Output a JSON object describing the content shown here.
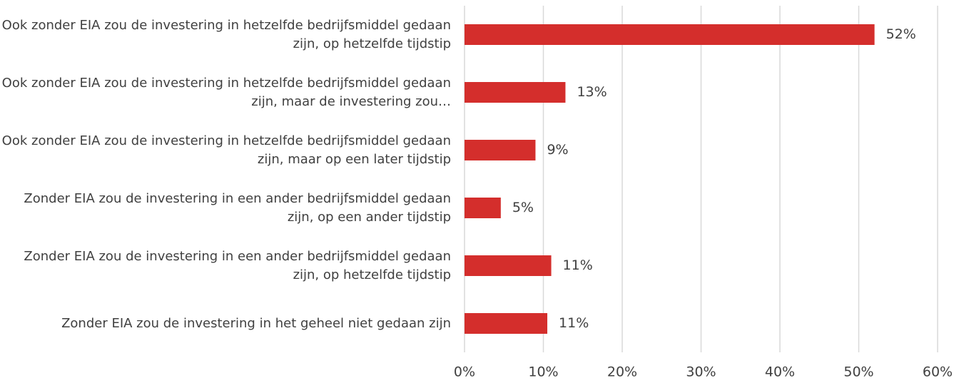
{
  "chart_data": {
    "type": "barh",
    "categories": [
      "Ook zonder EIA zou de investering in hetzelfde bedrijfsmiddel gedaan zijn, op hetzelfde tijdstip",
      "Ook zonder EIA zou de investering in hetzelfde bedrijfsmiddel gedaan zijn, maar de investering zou…",
      "Ook zonder EIA zou de investering in hetzelfde bedrijfsmiddel gedaan zijn, maar op een later tijdstip",
      "Zonder EIA zou de investering in een ander bedrijfsmiddel gedaan zijn, op een ander tijdstip",
      "Zonder EIA zou de investering in een ander bedrijfsmiddel gedaan zijn, op hetzelfde tijdstip",
      "Zonder EIA zou de investering in het geheel niet gedaan zijn"
    ],
    "values": [
      52,
      12.8,
      9,
      4.6,
      11,
      10.5
    ],
    "value_labels": [
      "52%",
      "13%",
      "9%",
      "5%",
      "11%",
      "11%"
    ],
    "color": "#d42e2c",
    "xlim": [
      0,
      60
    ],
    "xticks": [
      {
        "value": 0,
        "label": "0%"
      },
      {
        "value": 10,
        "label": "10%"
      },
      {
        "value": 20,
        "label": "20%"
      },
      {
        "value": 30,
        "label": "30%"
      },
      {
        "value": 40,
        "label": "40%"
      },
      {
        "value": 50,
        "label": "50%"
      },
      {
        "value": 60,
        "label": "60%"
      }
    ],
    "grid": true
  }
}
